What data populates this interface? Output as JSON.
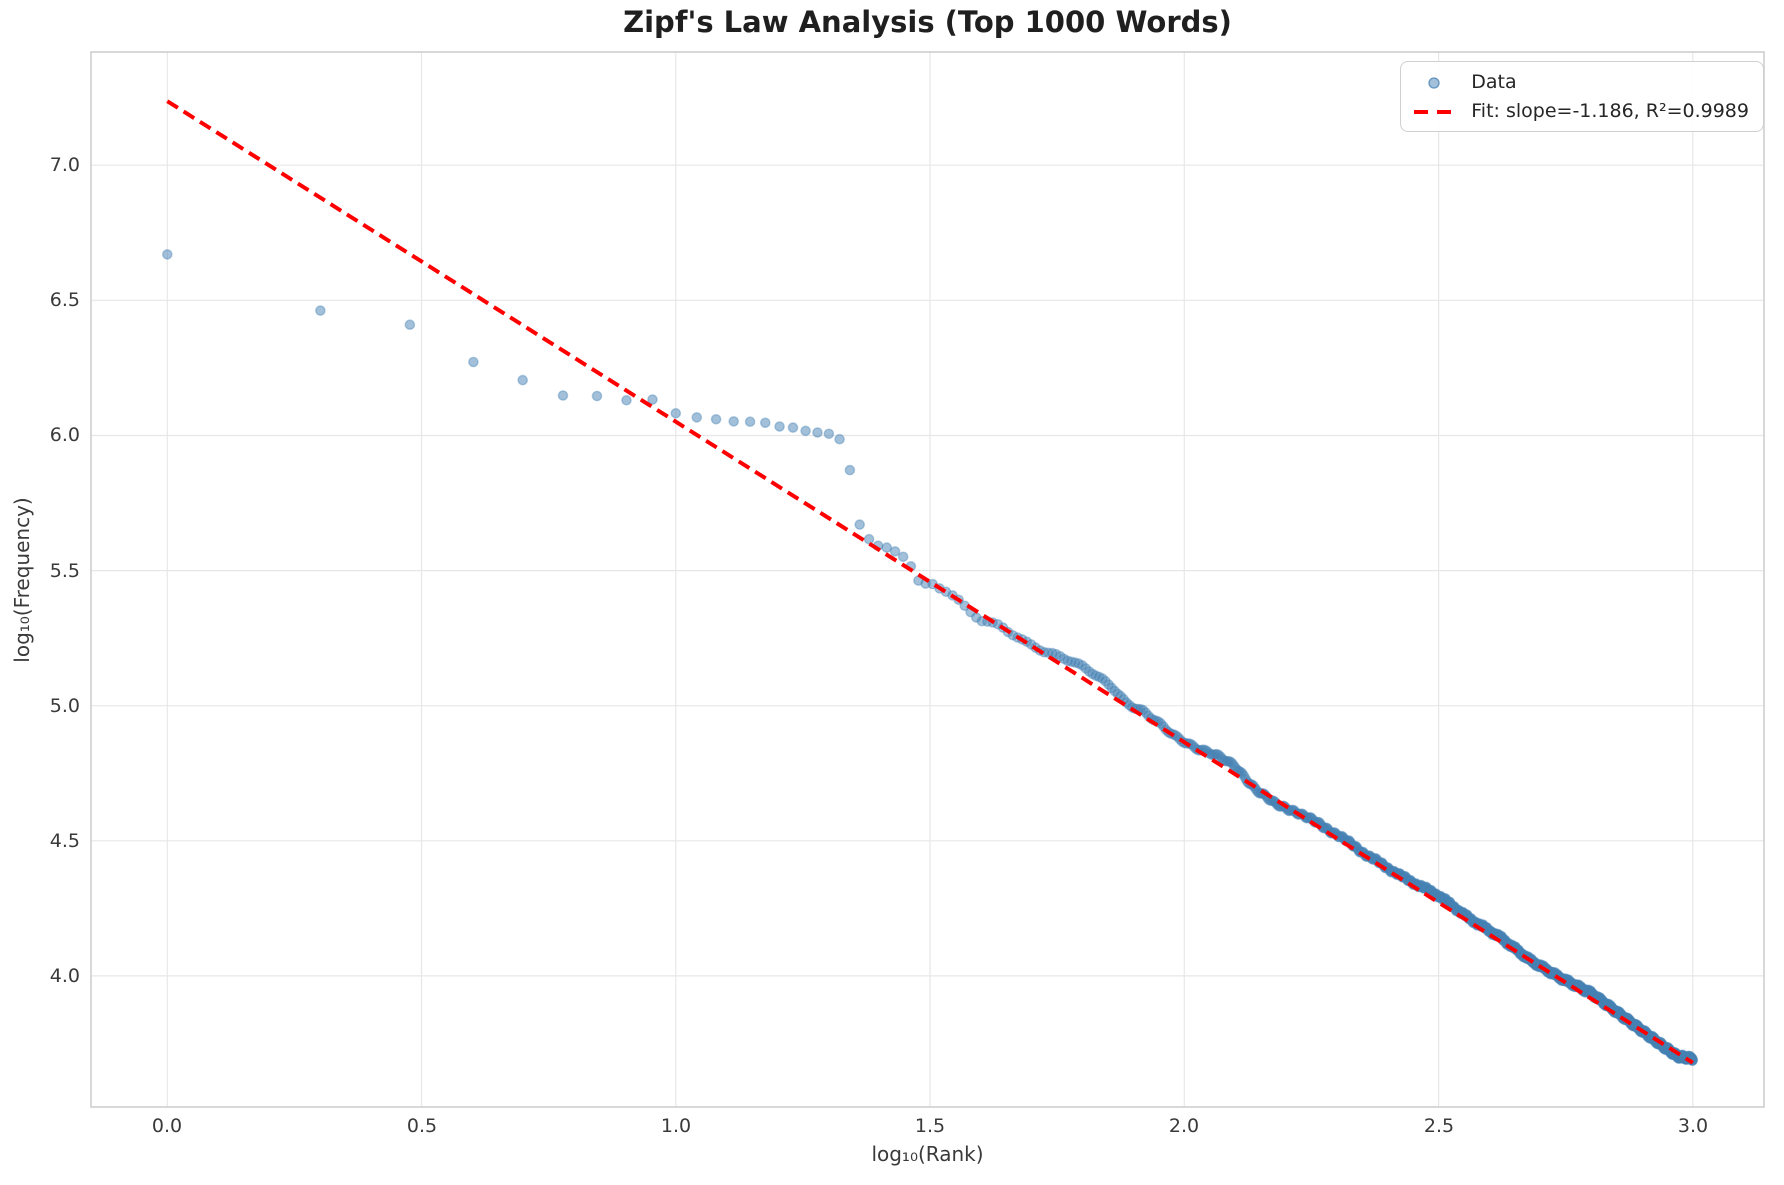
{
  "figure": {
    "title": "Zipf's Law Analysis (Top 1000 Words)"
  },
  "chart_data": {
    "type": "scatter",
    "title": "Zipf's Law Analysis (Top 1000 Words)",
    "xlabel": "log₁₀(Rank)",
    "ylabel": "log₁₀(Frequency)",
    "xlim": [
      -0.15,
      3.14
    ],
    "ylim": [
      3.515,
      7.419
    ],
    "xticks": [
      0.0,
      0.5,
      1.0,
      1.5,
      2.0,
      2.5,
      3.0
    ],
    "yticks": [
      4.0,
      4.5,
      5.0,
      5.5,
      6.0,
      6.5,
      7.0
    ],
    "grid": true,
    "legend_position": "upper right",
    "legend": {
      "data_label": "Data",
      "fit_label": "Fit: slope=-1.186, R²=0.9989"
    },
    "series": [
      {
        "name": "Data",
        "marker": "circle",
        "color": "#4682b4",
        "n_points": 1000,
        "x_rule": "x = log10(rank) for rank = 1..1000",
        "head_log_freq": [
          6.67,
          6.462,
          6.41,
          6.272,
          6.205,
          6.148,
          6.146,
          6.13,
          6.133,
          6.082,
          6.067,
          6.06,
          6.052,
          6.051,
          6.047,
          6.033,
          6.029,
          6.017,
          6.011,
          6.006,
          5.986,
          5.872,
          5.67,
          5.616,
          5.592,
          5.585,
          5.571,
          5.551,
          5.516,
          5.463,
          5.452
        ],
        "tail_rule": "log10(freq) = slope*r + intercept + deviation(r) for ranks 32..1000",
        "tail_deviation_anchors": [
          [
            1.5,
            0.0
          ],
          [
            1.56,
            -0.006
          ],
          [
            1.6,
            -0.022
          ],
          [
            1.64,
            0.005
          ],
          [
            1.69,
            0.002
          ],
          [
            1.73,
            0.012
          ],
          [
            1.78,
            0.035
          ],
          [
            1.82,
            0.042
          ],
          [
            1.86,
            0.038
          ],
          [
            1.885,
            0.012
          ],
          [
            1.92,
            0.018
          ],
          [
            1.95,
            0.008
          ],
          [
            1.98,
            -0.002
          ],
          [
            2.02,
            0.008
          ],
          [
            2.06,
            0.025
          ],
          [
            2.1,
            0.028
          ],
          [
            2.14,
            -0.005
          ],
          [
            2.18,
            -0.018
          ],
          [
            2.22,
            0.005
          ],
          [
            2.3,
            0.015
          ],
          [
            2.36,
            0.008
          ],
          [
            2.43,
            0.01
          ],
          [
            2.5,
            0.026
          ],
          [
            2.56,
            0.012
          ],
          [
            2.62,
            0.015
          ],
          [
            2.68,
            0.0
          ],
          [
            2.74,
            0.005
          ],
          [
            2.8,
            0.02
          ],
          [
            2.86,
            0.008
          ],
          [
            2.9,
            0.0
          ],
          [
            2.94,
            -0.008
          ],
          [
            2.97,
            -0.012
          ],
          [
            3.0,
            0.015
          ]
        ]
      }
    ],
    "fit_line": {
      "label": "Fit: slope=-1.186, R²=0.9989",
      "slope": -1.186,
      "intercept": 7.237,
      "r_squared": 0.9989,
      "x_range": [
        0.0,
        3.0
      ],
      "color": "#ff0000",
      "style": "dashed"
    }
  },
  "colors": {
    "marker": "#4682b4",
    "fit": "#ff0000",
    "grid": "#e7e7e7",
    "spine": "#cccccc",
    "text": "#262626",
    "background": "#ffffff"
  }
}
